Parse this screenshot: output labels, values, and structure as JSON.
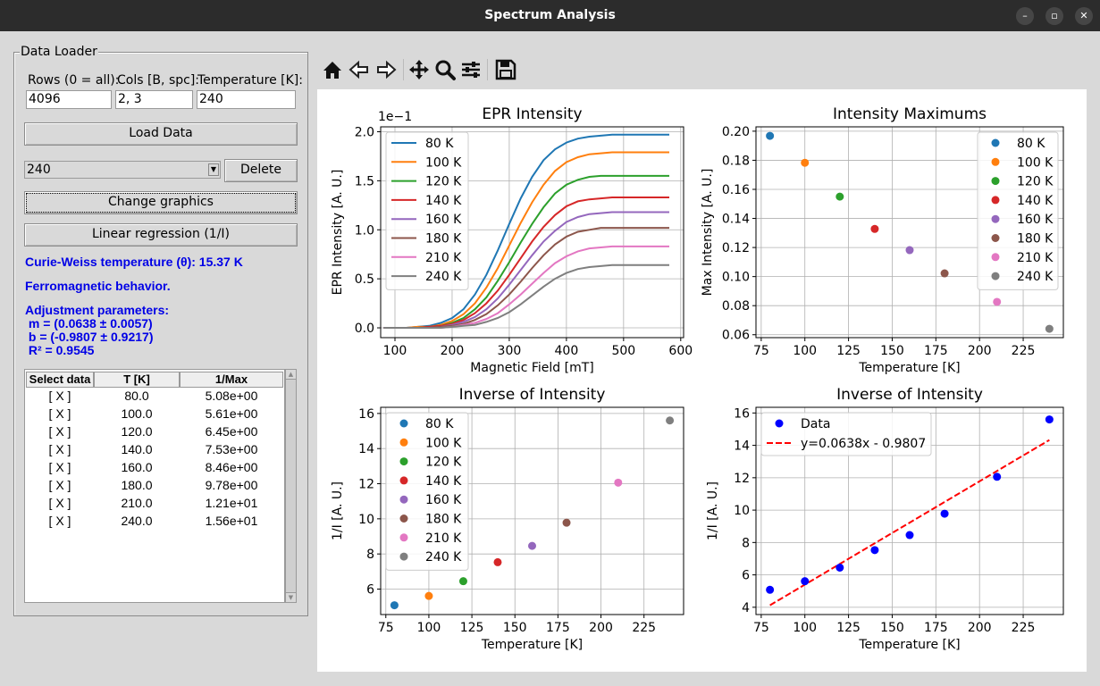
{
  "window": {
    "title": "Spectrum Analysis"
  },
  "toolbar": {
    "icons": [
      "home-icon",
      "back-icon",
      "forward-icon",
      "pan-icon",
      "zoom-icon",
      "configure-icon",
      "save-icon"
    ]
  },
  "loader": {
    "frame_label": "Data Loader",
    "rows_label": "Rows (0 = all):",
    "cols_label": "Cols [B, spc]:",
    "temp_label": "Temperature [K]:",
    "rows_value": "4096",
    "cols_value": "2, 3",
    "temp_value": "240",
    "load_button": "Load Data",
    "select_value": "240",
    "delete_button": "Delete",
    "change_button": "Change graphics",
    "regression_button": "Linear regression (1/I)",
    "curie": "Curie-Weiss temperature (θ): 15.37 K",
    "behavior": "Ferromagnetic behavior.",
    "adj_title": "Adjustment parameters:",
    "adj_m": " m = (0.0638 ± 0.0057)",
    "adj_b": " b = (-0.9807 ± 0.9217)",
    "adj_r2": " R² = 0.9545"
  },
  "table": {
    "headers": [
      "Select data",
      "T [K]",
      "1/Max"
    ],
    "rows": [
      [
        "[ X ]",
        "80.0",
        "5.08e+00"
      ],
      [
        "[ X ]",
        "100.0",
        "5.61e+00"
      ],
      [
        "[ X ]",
        "120.0",
        "6.45e+00"
      ],
      [
        "[ X ]",
        "140.0",
        "7.53e+00"
      ],
      [
        "[ X ]",
        "160.0",
        "8.46e+00"
      ],
      [
        "[ X ]",
        "180.0",
        "9.78e+00"
      ],
      [
        "[ X ]",
        "210.0",
        "1.21e+01"
      ],
      [
        "[ X ]",
        "240.0",
        "1.56e+01"
      ]
    ]
  },
  "colors": [
    "#1f77b4",
    "#ff7f0e",
    "#2ca02c",
    "#d62728",
    "#9467bd",
    "#8c564b",
    "#e377c2",
    "#7f7f7f"
  ],
  "chart_data": [
    {
      "type": "line",
      "title": "EPR Intensity",
      "xlabel": "Magnetic Field [mT]",
      "ylabel": "EPR Intensity [A. U.]",
      "offset_text": "1e−1",
      "xlim": [
        75,
        605
      ],
      "ylim": [
        -0.1,
        2.05
      ],
      "xticks": [
        100,
        200,
        300,
        400,
        500,
        600
      ],
      "yticks": [
        0.0,
        0.5,
        1.0,
        1.5,
        2.0
      ],
      "ytick_labels": [
        "0.0",
        "0.5",
        "1.0",
        "1.5",
        "2.0"
      ],
      "legend": "top-left",
      "x": [
        80,
        100,
        120,
        140,
        160,
        180,
        200,
        220,
        240,
        260,
        280,
        300,
        320,
        340,
        360,
        380,
        400,
        420,
        440,
        460,
        480,
        500,
        520,
        540,
        560,
        580
      ],
      "series": [
        {
          "name": "80 K",
          "values": [
            0.0,
            0.0,
            0.0,
            0.01,
            0.02,
            0.05,
            0.1,
            0.19,
            0.34,
            0.54,
            0.79,
            1.06,
            1.32,
            1.54,
            1.71,
            1.82,
            1.89,
            1.93,
            1.95,
            1.96,
            1.97,
            1.97,
            1.97,
            1.97,
            1.97,
            1.97
          ]
        },
        {
          "name": "100 K",
          "values": [
            0.0,
            0.0,
            0.0,
            0.01,
            0.01,
            0.03,
            0.07,
            0.14,
            0.25,
            0.41,
            0.61,
            0.84,
            1.07,
            1.28,
            1.46,
            1.6,
            1.69,
            1.74,
            1.77,
            1.78,
            1.79,
            1.79,
            1.79,
            1.79,
            1.79,
            1.79
          ]
        },
        {
          "name": "120 K",
          "values": [
            0.0,
            0.0,
            0.0,
            0.0,
            0.01,
            0.02,
            0.05,
            0.1,
            0.19,
            0.31,
            0.48,
            0.67,
            0.87,
            1.06,
            1.23,
            1.37,
            1.46,
            1.51,
            1.54,
            1.55,
            1.55,
            1.55,
            1.55,
            1.55,
            1.55,
            1.55
          ]
        },
        {
          "name": "140 K",
          "values": [
            0.0,
            0.0,
            0.0,
            0.0,
            0.01,
            0.02,
            0.04,
            0.08,
            0.15,
            0.25,
            0.38,
            0.54,
            0.71,
            0.88,
            1.03,
            1.15,
            1.24,
            1.29,
            1.31,
            1.32,
            1.33,
            1.33,
            1.33,
            1.33,
            1.33,
            1.33
          ]
        },
        {
          "name": "160 K",
          "values": [
            0.0,
            0.0,
            0.0,
            0.0,
            0.0,
            0.01,
            0.03,
            0.06,
            0.11,
            0.19,
            0.3,
            0.44,
            0.59,
            0.74,
            0.88,
            0.99,
            1.08,
            1.13,
            1.16,
            1.17,
            1.18,
            1.18,
            1.18,
            1.18,
            1.18,
            1.18
          ]
        },
        {
          "name": "180 K",
          "values": [
            0.0,
            0.0,
            0.0,
            0.0,
            0.0,
            0.01,
            0.02,
            0.04,
            0.08,
            0.14,
            0.23,
            0.34,
            0.47,
            0.61,
            0.74,
            0.85,
            0.93,
            0.98,
            1.0,
            1.02,
            1.02,
            1.02,
            1.02,
            1.02,
            1.02,
            1.02
          ]
        },
        {
          "name": "210 K",
          "values": [
            0.0,
            0.0,
            0.0,
            0.0,
            0.0,
            0.0,
            0.01,
            0.03,
            0.05,
            0.09,
            0.15,
            0.24,
            0.34,
            0.45,
            0.56,
            0.66,
            0.73,
            0.78,
            0.81,
            0.82,
            0.83,
            0.83,
            0.83,
            0.83,
            0.83,
            0.83
          ]
        },
        {
          "name": "240 K",
          "values": [
            0.0,
            0.0,
            0.0,
            0.0,
            0.0,
            0.0,
            0.01,
            0.02,
            0.03,
            0.06,
            0.1,
            0.16,
            0.24,
            0.33,
            0.42,
            0.5,
            0.56,
            0.6,
            0.62,
            0.63,
            0.64,
            0.64,
            0.64,
            0.64,
            0.64,
            0.64
          ]
        }
      ]
    },
    {
      "type": "scatter",
      "title": "Intensity Maximums",
      "xlabel": "Temperature [K]",
      "ylabel": "Max Intensity [A. U.]",
      "xlim": [
        72,
        248
      ],
      "ylim": [
        0.058,
        0.203
      ],
      "xticks": [
        75,
        100,
        125,
        150,
        175,
        200,
        225
      ],
      "yticks": [
        0.06,
        0.08,
        0.1,
        0.12,
        0.14,
        0.16,
        0.18,
        0.2
      ],
      "ytick_labels": [
        "0.06",
        "0.08",
        "0.10",
        "0.12",
        "0.14",
        "0.16",
        "0.18",
        "0.20"
      ],
      "legend": "top-right",
      "series": [
        {
          "name": "80 K",
          "x": 80,
          "y": 0.1968
        },
        {
          "name": "100 K",
          "x": 100,
          "y": 0.1783
        },
        {
          "name": "120 K",
          "x": 120,
          "y": 0.155
        },
        {
          "name": "140 K",
          "x": 140,
          "y": 0.1328
        },
        {
          "name": "160 K",
          "x": 160,
          "y": 0.1182
        },
        {
          "name": "180 K",
          "x": 180,
          "y": 0.1022
        },
        {
          "name": "210 K",
          "x": 210,
          "y": 0.0826
        },
        {
          "name": "240 K",
          "x": 240,
          "y": 0.0641
        }
      ]
    },
    {
      "type": "scatter",
      "title": "Inverse of Intensity",
      "xlabel": "Temperature [K]",
      "ylabel": "1/I [A. U.]",
      "xlim": [
        72,
        248
      ],
      "ylim": [
        4.55,
        16.35
      ],
      "xticks": [
        75,
        100,
        125,
        150,
        175,
        200,
        225
      ],
      "yticks": [
        6,
        8,
        10,
        12,
        14,
        16
      ],
      "ytick_labels": [
        "6",
        "8",
        "10",
        "12",
        "14",
        "16"
      ],
      "legend": "top-left",
      "series": [
        {
          "name": "80 K",
          "x": 80,
          "y": 5.08
        },
        {
          "name": "100 K",
          "x": 100,
          "y": 5.61
        },
        {
          "name": "120 K",
          "x": 120,
          "y": 6.45
        },
        {
          "name": "140 K",
          "x": 140,
          "y": 7.53
        },
        {
          "name": "160 K",
          "x": 160,
          "y": 8.46
        },
        {
          "name": "180 K",
          "x": 180,
          "y": 9.78
        },
        {
          "name": "210 K",
          "x": 210,
          "y": 12.06
        },
        {
          "name": "240 K",
          "x": 240,
          "y": 15.6
        }
      ]
    },
    {
      "type": "scatter",
      "title": "Inverse of Intensity",
      "xlabel": "Temperature [K]",
      "ylabel": "1/I [A. U.]",
      "xlim": [
        72,
        248
      ],
      "ylim": [
        3.55,
        16.35
      ],
      "xticks": [
        75,
        100,
        125,
        150,
        175,
        200,
        225
      ],
      "yticks": [
        4,
        6,
        8,
        10,
        12,
        14,
        16
      ],
      "ytick_labels": [
        "4",
        "6",
        "8",
        "10",
        "12",
        "14",
        "16"
      ],
      "legend": "top-left",
      "points": {
        "name": "Data",
        "x": [
          80,
          100,
          120,
          140,
          160,
          180,
          210,
          240
        ],
        "y": [
          5.08,
          5.61,
          6.45,
          7.53,
          8.46,
          9.78,
          12.06,
          15.6
        ],
        "color": "#0000ff"
      },
      "fit": {
        "name": "y=0.0638x - 0.9807",
        "slope": 0.0638,
        "intercept": -0.9807,
        "x": [
          80,
          240
        ],
        "color": "#ff0000"
      }
    }
  ]
}
